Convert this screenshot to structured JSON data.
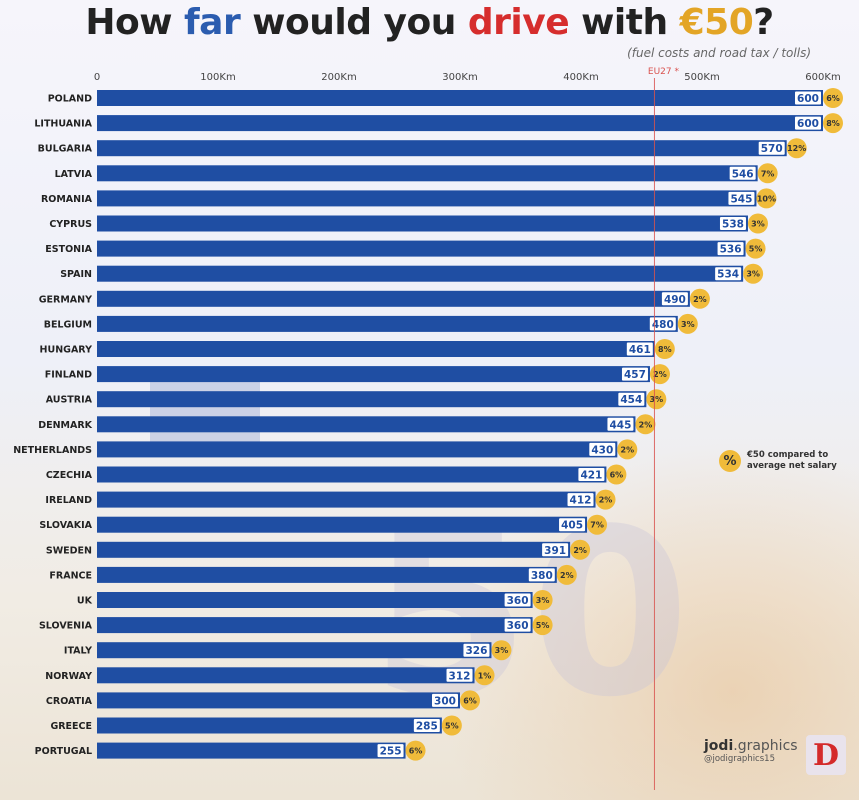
{
  "header": {
    "title_part1": "How ",
    "title_far": "far",
    "title_part2": " would you ",
    "title_drive": "drive",
    "title_part3": " with ",
    "title_amount": "€50",
    "title_q": "?",
    "subtitle": "(fuel costs and road tax / tolls)"
  },
  "legend": {
    "badge": "%",
    "text": "€50 compared to average net salary"
  },
  "brand": {
    "name_main": "jodi",
    "name_suffix": ".graphics",
    "handle": "@jodigraphics15",
    "logo_letter": "D"
  },
  "colors": {
    "bar": "#1f4ea3",
    "badge": "#f0bb3a",
    "reference_line": "#d9534f",
    "reference_label": "#d9534f"
  },
  "chart_data": {
    "type": "bar",
    "orientation": "horizontal",
    "xlim": [
      0,
      600
    ],
    "ticks": [
      {
        "value": 0,
        "label": "0"
      },
      {
        "value": 100,
        "label": "100Km"
      },
      {
        "value": 200,
        "label": "200Km"
      },
      {
        "value": 300,
        "label": "300Km"
      },
      {
        "value": 400,
        "label": "400Km"
      },
      {
        "value": 500,
        "label": "500Km"
      },
      {
        "value": 600,
        "label": "600Km"
      }
    ],
    "reference_line": {
      "label": "EU27 *",
      "value": 445
    },
    "categories": [
      "POLAND",
      "LITHUANIA",
      "BULGARIA",
      "LATVIA",
      "ROMANIA",
      "CYPRUS",
      "ESTONIA",
      "SPAIN",
      "GERMANY",
      "BELGIUM",
      "HUNGARY",
      "FINLAND",
      "AUSTRIA",
      "DENMARK",
      "NETHERLANDS",
      "CZECHIA",
      "IRELAND",
      "SLOVAKIA",
      "SWEDEN",
      "FRANCE",
      "UK",
      "SLOVENIA",
      "ITALY",
      "NORWAY",
      "CROATIA",
      "GREECE",
      "PORTUGAL"
    ],
    "values": [
      600,
      600,
      570,
      546,
      545,
      538,
      536,
      534,
      490,
      480,
      461,
      457,
      454,
      445,
      430,
      421,
      412,
      405,
      391,
      380,
      360,
      360,
      326,
      312,
      300,
      285,
      255
    ],
    "salary_share": [
      "6%",
      "8%",
      "12%",
      "7%",
      "10%",
      "3%",
      "5%",
      "3%",
      "2%",
      "3%",
      "8%",
      "2%",
      "3%",
      "2%",
      "2%",
      "6%",
      "2%",
      "7%",
      "2%",
      "2%",
      "3%",
      "5%",
      "3%",
      "1%",
      "6%",
      "5%",
      "6%"
    ]
  }
}
